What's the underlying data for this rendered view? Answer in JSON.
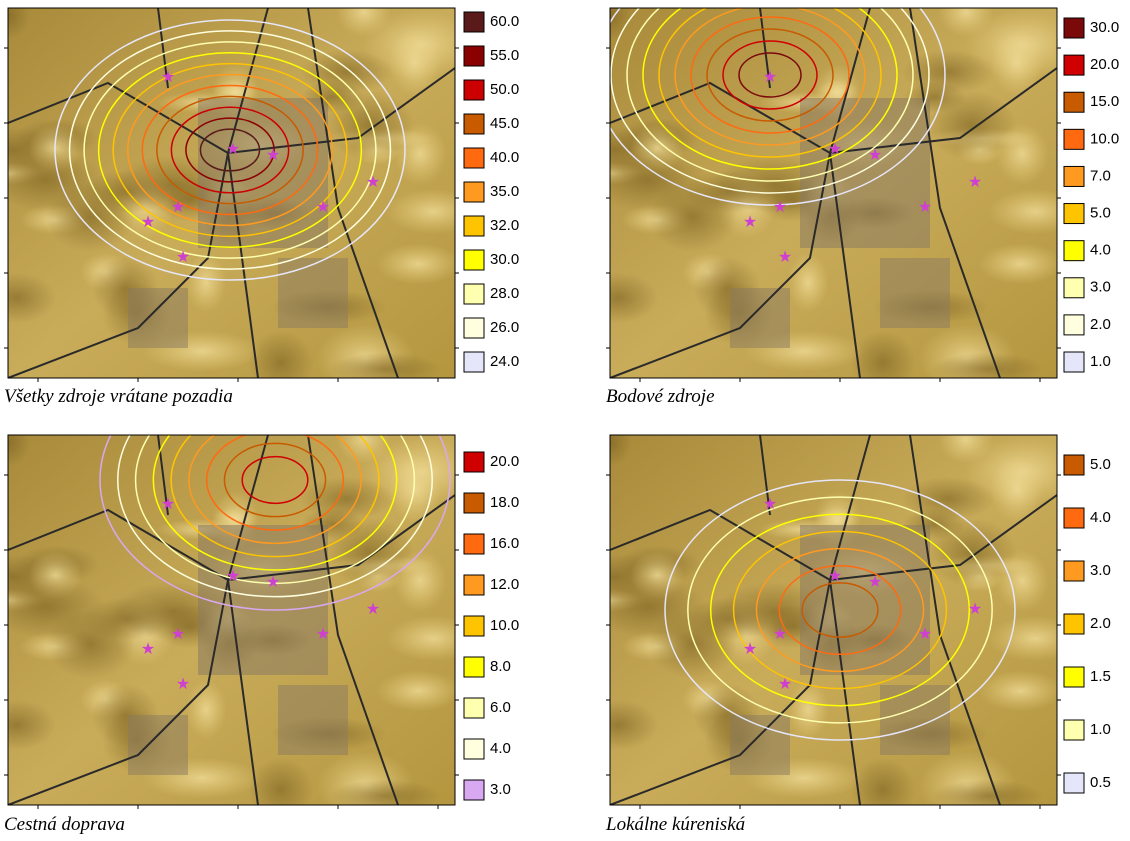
{
  "panels": [
    {
      "caption": "Všetky zdroje vrátane pozadia",
      "legend": [
        {
          "label": "60.0",
          "color": "#5a1a1a"
        },
        {
          "label": "55.0",
          "color": "#8b0000"
        },
        {
          "label": "50.0",
          "color": "#cc0000"
        },
        {
          "label": "45.0",
          "color": "#c85a00"
        },
        {
          "label": "40.0",
          "color": "#ff6a10"
        },
        {
          "label": "35.0",
          "color": "#ff9a20"
        },
        {
          "label": "32.0",
          "color": "#ffc400"
        },
        {
          "label": "30.0",
          "color": "#ffff00"
        },
        {
          "label": "28.0",
          "color": "#ffffb0"
        },
        {
          "label": "26.0",
          "color": "#ffffe0"
        },
        {
          "label": "24.0",
          "color": "#e6e6fa"
        }
      ]
    },
    {
      "caption": "Bodové zdroje",
      "legend": [
        {
          "label": "30.0",
          "color": "#7a0a0a"
        },
        {
          "label": "20.0",
          "color": "#d00000"
        },
        {
          "label": "15.0",
          "color": "#c85a00"
        },
        {
          "label": "10.0",
          "color": "#ff6a10"
        },
        {
          "label": "7.0",
          "color": "#ff9a20"
        },
        {
          "label": "5.0",
          "color": "#ffc400"
        },
        {
          "label": "4.0",
          "color": "#ffff00"
        },
        {
          "label": "3.0",
          "color": "#ffffb0"
        },
        {
          "label": "2.0",
          "color": "#ffffe0"
        },
        {
          "label": "1.0",
          "color": "#e6e6fa"
        }
      ]
    },
    {
      "caption": "Cestná doprava",
      "legend": [
        {
          "label": "20.0",
          "color": "#d00000"
        },
        {
          "label": "18.0",
          "color": "#c85a00"
        },
        {
          "label": "16.0",
          "color": "#ff6a10"
        },
        {
          "label": "12.0",
          "color": "#ff9a20"
        },
        {
          "label": "10.0",
          "color": "#ffc400"
        },
        {
          "label": "8.0",
          "color": "#ffff00"
        },
        {
          "label": "6.0",
          "color": "#ffffb0"
        },
        {
          "label": "4.0",
          "color": "#ffffe0"
        },
        {
          "label": "3.0",
          "color": "#d8a8f0"
        }
      ]
    },
    {
      "caption": "Lokálne kúreniská",
      "legend": [
        {
          "label": "5.0",
          "color": "#c85a00"
        },
        {
          "label": "4.0",
          "color": "#ff6a10"
        },
        {
          "label": "3.0",
          "color": "#ff9a20"
        },
        {
          "label": "2.0",
          "color": "#ffc400"
        },
        {
          "label": "1.5",
          "color": "#ffff00"
        },
        {
          "label": "1.0",
          "color": "#ffffb0"
        },
        {
          "label": "0.5",
          "color": "#e6e6fa"
        }
      ]
    }
  ]
}
